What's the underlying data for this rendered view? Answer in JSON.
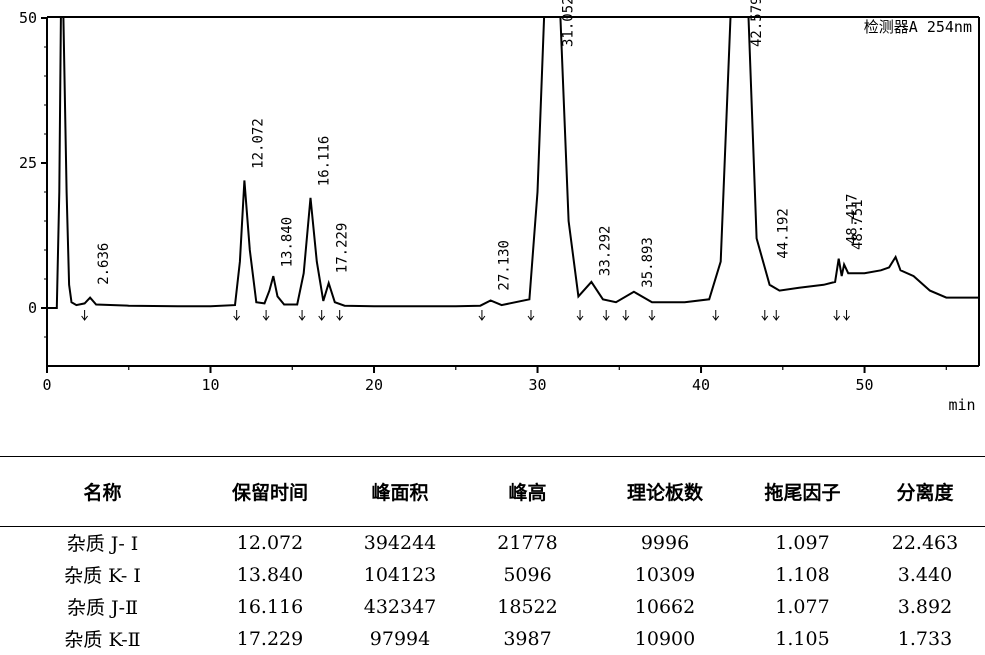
{
  "chart_data": {
    "type": "line",
    "detector_label": "检测器A 254nm",
    "xlabel": "min",
    "ylabel": "",
    "xlim": [
      0,
      57
    ],
    "ylim": [
      -10,
      50
    ],
    "x_ticks": [
      "0",
      "10",
      "20",
      "30",
      "40",
      "50"
    ],
    "y_ticks": [
      "50",
      "25",
      "0"
    ],
    "peak_labels": [
      "2.636",
      "12.072",
      "13.840",
      "16.116",
      "17.229",
      "27.130",
      "31.052",
      "33.292",
      "35.893",
      "42.579",
      "44.192",
      "48.417",
      "48.751"
    ],
    "series": [
      {
        "x": [
          0,
          0.6,
          0.75,
          0.85,
          1.0,
          1.2,
          1.35,
          1.5,
          1.8,
          2.3,
          2.636,
          3.0,
          5,
          8,
          10,
          11.5,
          11.8,
          12.072,
          12.4,
          12.8,
          13.3,
          13.6,
          13.84,
          14.1,
          14.5,
          15.3,
          15.7,
          16.116,
          16.5,
          16.9,
          17.229,
          17.6,
          18.2,
          20,
          25,
          26.5,
          27.13,
          27.8,
          29.5,
          30.0,
          30.4,
          30.8,
          31.052,
          31.4,
          31.9,
          32.5,
          33.292,
          34.0,
          34.8,
          35.893,
          37,
          39,
          40.5,
          41.2,
          41.8,
          42.2,
          42.579,
          42.9,
          43.4,
          44.192,
          44.8,
          46,
          47.5,
          48.2,
          48.417,
          48.6,
          48.751,
          49,
          50,
          51,
          51.5,
          51.9,
          52.2,
          53,
          54,
          55,
          57
        ],
        "y": [
          0,
          0,
          20,
          55,
          55,
          20,
          4,
          1,
          0.5,
          0.8,
          1.8,
          0.6,
          0.4,
          0.3,
          0.3,
          0.5,
          8,
          22,
          10,
          1,
          0.8,
          3,
          5.5,
          2,
          0.6,
          0.6,
          6,
          19,
          8,
          1.2,
          4.3,
          1.0,
          0.4,
          0.3,
          0.3,
          0.4,
          1.3,
          0.5,
          1.5,
          20,
          60,
          60,
          60,
          60,
          15,
          2,
          4.5,
          1.5,
          1,
          2.8,
          1,
          1,
          1.5,
          8,
          60,
          60,
          60,
          60,
          12,
          4,
          3,
          3.5,
          4,
          4.5,
          8.5,
          5.5,
          7.5,
          6,
          6,
          6.5,
          7,
          8.8,
          6.5,
          5.5,
          3,
          1.8,
          1.8
        ]
      }
    ]
  },
  "table": {
    "headers": [
      "名称",
      "保留时间",
      "峰面积",
      "峰高",
      "理论板数",
      "拖尾因子",
      "分离度"
    ],
    "rows": [
      [
        "杂质 J- I",
        "12.072",
        "394244",
        "21778",
        "9996",
        "1.097",
        "22.463"
      ],
      [
        "杂质 K- I",
        "13.840",
        "104123",
        "5096",
        "10309",
        "1.108",
        "3.440"
      ],
      [
        "杂质 J-Ⅱ",
        "16.116",
        "432347",
        "18522",
        "10662",
        "1.077",
        "3.892"
      ],
      [
        "杂质 K-Ⅱ",
        "17.229",
        "97994",
        "3987",
        "10900",
        "1.105",
        "1.733"
      ]
    ]
  }
}
